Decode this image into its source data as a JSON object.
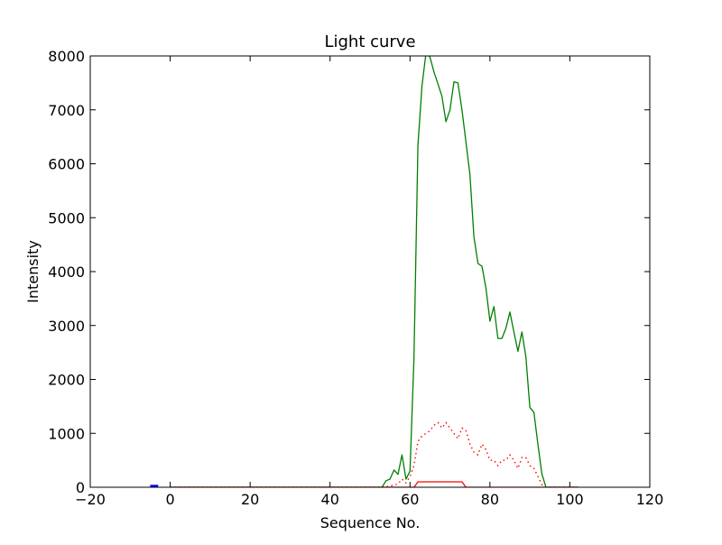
{
  "chart_data": {
    "type": "line",
    "title": "Light curve",
    "xlabel": "Sequence No.",
    "ylabel": "Intensity",
    "xlim": [
      -20,
      120
    ],
    "ylim": [
      0,
      8000
    ],
    "xticks": [
      -20,
      0,
      20,
      40,
      60,
      80,
      100,
      120
    ],
    "yticks": [
      0,
      1000,
      2000,
      3000,
      4000,
      5000,
      6000,
      7000,
      8000
    ],
    "grid": false,
    "legend": "none",
    "series": [
      {
        "color": "#008000",
        "style": "solid",
        "x": [
          0,
          5,
          10,
          15,
          20,
          25,
          30,
          35,
          40,
          45,
          50,
          53,
          54,
          55,
          56,
          57,
          58,
          59,
          60,
          61,
          62,
          63,
          64,
          65,
          66,
          67,
          68,
          69,
          70,
          71,
          72,
          73,
          74,
          75,
          76,
          77,
          78,
          79,
          80,
          81,
          82,
          83,
          84,
          85,
          86,
          87,
          88,
          89,
          90,
          91,
          92,
          93,
          94,
          100,
          102
        ],
        "y": [
          0,
          0,
          0,
          0,
          0,
          0,
          0,
          0,
          0,
          0,
          0,
          0,
          120,
          150,
          320,
          240,
          600,
          150,
          300,
          2400,
          6350,
          7450,
          8050,
          7980,
          7700,
          7480,
          7250,
          6780,
          7000,
          7520,
          7500,
          7000,
          6400,
          5800,
          4650,
          4150,
          4100,
          3700,
          3080,
          3350,
          2760,
          2760,
          2950,
          3250,
          2880,
          2520,
          2880,
          2420,
          1480,
          1390,
          800,
          250,
          0,
          0,
          0
        ]
      },
      {
        "color": "#ff0000",
        "style": "dotted",
        "x": [
          0,
          10,
          20,
          30,
          40,
          50,
          53,
          55,
          57,
          58,
          59,
          60,
          61,
          62,
          63,
          64,
          65,
          66,
          67,
          68,
          69,
          70,
          71,
          72,
          73,
          74,
          75,
          76,
          77,
          78,
          79,
          80,
          81,
          82,
          83,
          84,
          85,
          86,
          87,
          88,
          89,
          90,
          91,
          92,
          93,
          94,
          100,
          102
        ],
        "y": [
          0,
          0,
          0,
          0,
          0,
          0,
          0,
          20,
          60,
          150,
          80,
          200,
          400,
          850,
          950,
          1000,
          1050,
          1150,
          1200,
          1100,
          1200,
          1100,
          1000,
          900,
          1100,
          1050,
          800,
          650,
          600,
          800,
          700,
          500,
          500,
          400,
          500,
          500,
          600,
          500,
          350,
          550,
          550,
          400,
          350,
          200,
          50,
          0,
          0,
          0
        ]
      },
      {
        "color": "#ff0000",
        "style": "solid",
        "x": [
          0,
          10,
          20,
          30,
          40,
          50,
          60,
          61,
          62,
          63,
          64,
          66,
          68,
          70,
          72,
          73,
          74,
          80,
          90,
          100,
          102
        ],
        "y": [
          0,
          0,
          0,
          0,
          0,
          0,
          0,
          0,
          100,
          100,
          100,
          100,
          100,
          100,
          100,
          100,
          0,
          0,
          0,
          0,
          0
        ]
      },
      {
        "color": "#0000ff",
        "style": "solid",
        "x": [
          -5,
          -3
        ],
        "y": [
          20,
          20
        ]
      }
    ]
  }
}
